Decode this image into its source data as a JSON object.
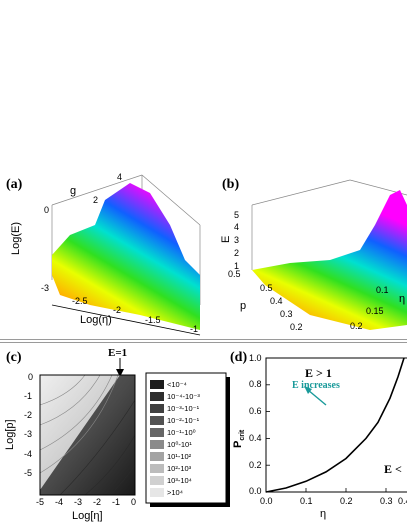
{
  "panel_a": {
    "label": "(a)",
    "g_label": "g",
    "g_ticks": [
      "2",
      "4"
    ],
    "zlabel": "Log(E)",
    "z_ticks": [
      "0",
      "-3"
    ],
    "xlabel": "Log(η)",
    "x_ticks": [
      "-2.5",
      "-2",
      "-1.5",
      "-1"
    ]
  },
  "panel_b": {
    "label": "(b)",
    "zlabel": "E",
    "z_ticks": [
      "5",
      "4",
      "3",
      "2",
      "1",
      "0.5"
    ],
    "plabel": "p",
    "p_ticks": [
      "0.5",
      "0.4",
      "0.3",
      "0.2"
    ],
    "eta_label": "η",
    "eta_ticks": [
      "0.1",
      "0.15",
      "0.2"
    ]
  },
  "panel_c": {
    "label": "(c)",
    "annotation": "E=1",
    "ylabel": "Log[p]",
    "xlabel": "Log[η]",
    "y_ticks": [
      "0",
      "-1",
      "-2",
      "-3",
      "-4",
      "-5"
    ],
    "x_ticks": [
      "-5",
      "-4",
      "-3",
      "-2",
      "-1",
      "0"
    ],
    "legend": [
      {
        "label": "<10⁻⁴",
        "color": "#1c1c1c"
      },
      {
        "label": "10⁻⁴-10⁻³",
        "color": "#2e2e2e"
      },
      {
        "label": "10⁻³-10⁻¹",
        "color": "#404040"
      },
      {
        "label": "10⁻²-10⁻¹",
        "color": "#525252"
      },
      {
        "label": "10⁻¹-10⁰",
        "color": "#666666"
      },
      {
        "label": "10⁰-10¹",
        "color": "#8a8a8a"
      },
      {
        "label": "10¹-10²",
        "color": "#a3a3a3"
      },
      {
        "label": "10²-10³",
        "color": "#bcbcbc"
      },
      {
        "label": "10³-10⁴",
        "color": "#d0d0d0"
      },
      {
        "label": ">10⁴",
        "color": "#e6e6e6"
      }
    ]
  },
  "panel_d": {
    "label": "(d)",
    "ylabel": "P",
    "ylabel_sub": "crit",
    "xlabel": "η",
    "region_top": "E > 1",
    "region_bottom": "E <",
    "arrow_label": "E increases",
    "arrow_color": "#1a9a9a",
    "y_ticks": [
      "1.0",
      "0.8",
      "0.6",
      "0.4",
      "0.2",
      "0.0"
    ],
    "x_ticks": [
      "0.0",
      "0.1",
      "0.2",
      "0.3",
      "0.4"
    ],
    "chart_data": {
      "type": "line",
      "xlabel": "η",
      "ylabel": "Pcrit",
      "xlim": [
        0,
        0.4
      ],
      "ylim": [
        0,
        1
      ],
      "x": [
        0.0,
        0.05,
        0.1,
        0.15,
        0.2,
        0.25,
        0.28,
        0.31,
        0.33,
        0.345
      ],
      "y": [
        0.0,
        0.03,
        0.08,
        0.15,
        0.25,
        0.4,
        0.52,
        0.7,
        0.86,
        1.0
      ]
    }
  }
}
